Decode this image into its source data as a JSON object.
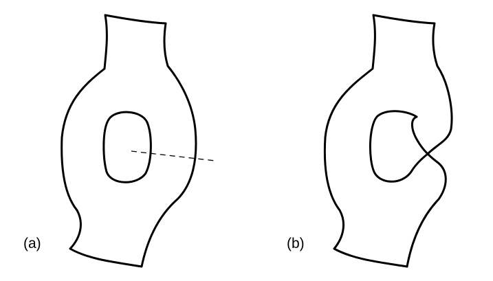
{
  "figure": {
    "panels": [
      {
        "id": "a",
        "label": "(a)",
        "description_visible": false
      },
      {
        "id": "b",
        "label": "(b)",
        "description_visible": false
      }
    ],
    "colors": {
      "stroke": "#000000",
      "background": "#ffffff"
    }
  }
}
